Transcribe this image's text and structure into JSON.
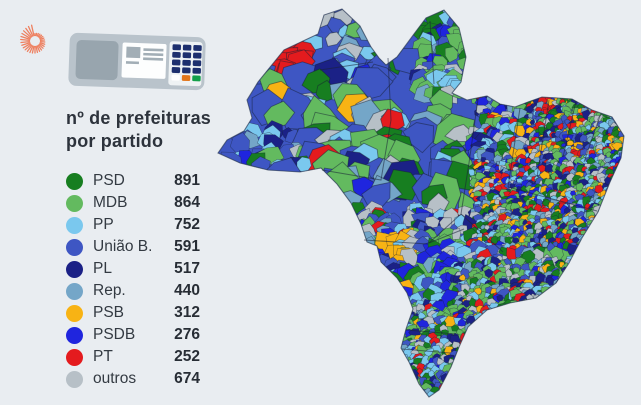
{
  "page": {
    "background": "#e9edf1"
  },
  "branding": {
    "logo": "sunburst-logo",
    "logo_color": "#ee8060"
  },
  "urna_icon": {
    "body": "#b9c3cb",
    "left_panel": "#98a5ae",
    "white_panel": "#fdfefe",
    "screen": "#a2aeb6",
    "keypad_panel": "#eef2f4",
    "keys": "#1d2f6e",
    "key_white": "#ffffff",
    "key_orange": "#e2761b",
    "key_green": "#13a04b"
  },
  "title": {
    "line1": "nº de prefeituras",
    "line2": "por partido"
  },
  "legend": {
    "items": [
      {
        "key": "PSD",
        "label": "PSD",
        "value": "891",
        "color": "#177e20"
      },
      {
        "key": "MDB",
        "label": "MDB",
        "value": "864",
        "color": "#63ba5f"
      },
      {
        "key": "PP",
        "label": "PP",
        "value": "752",
        "color": "#7ac8ee"
      },
      {
        "key": "UNIAO",
        "label": "União B.",
        "value": "591",
        "color": "#3e56c3"
      },
      {
        "key": "PL",
        "label": "PL",
        "value": "517",
        "color": "#1b2186"
      },
      {
        "key": "REP",
        "label": "Rep.",
        "value": "440",
        "color": "#74a6c8"
      },
      {
        "key": "PSB",
        "label": "PSB",
        "value": "312",
        "color": "#f8b314"
      },
      {
        "key": "PSDB",
        "label": "PSDB",
        "value": "276",
        "color": "#1f25de"
      },
      {
        "key": "PT",
        "label": "PT",
        "value": "252",
        "color": "#e41b1e"
      },
      {
        "key": "OUT",
        "label": "outros",
        "value": "674",
        "color": "#b7c0c7"
      }
    ]
  },
  "chart_data": {
    "type": "heatmap",
    "subtype": "choropleth map of Brazilian municipalities by winning party",
    "title": "nº de prefeituras por partido",
    "categories": [
      "PSD",
      "MDB",
      "PP",
      "União B.",
      "PL",
      "Rep.",
      "PSB",
      "PSDB",
      "PT",
      "outros"
    ],
    "values": [
      891,
      864,
      752,
      591,
      517,
      440,
      312,
      276,
      252,
      674
    ],
    "colors": [
      "#177e20",
      "#63ba5f",
      "#7ac8ee",
      "#3e56c3",
      "#1b2186",
      "#74a6c8",
      "#f8b314",
      "#1f25de",
      "#e41b1e",
      "#b7c0c7"
    ],
    "legend_position": "left",
    "region": "Brazil",
    "notable_rendered_patches": [
      {
        "party": "PT",
        "color": "#e41b1e",
        "location": "large red area, northwest Amazonas"
      },
      {
        "party": "PSB",
        "color": "#f8b314",
        "location": "large yellow area, western Mato Grosso do Sul"
      },
      {
        "party": "PP",
        "color": "#7ac8ee",
        "location": "light-blue dominated Roraima (north tip)"
      },
      {
        "party": "PSDB",
        "color": "#1f25de",
        "location": "bright blue cluster, Mato Grosso do Sul"
      }
    ]
  },
  "map": {
    "outline_color": "#2a3850",
    "border_line_color": "rgba(25,35,55,0.55)"
  }
}
